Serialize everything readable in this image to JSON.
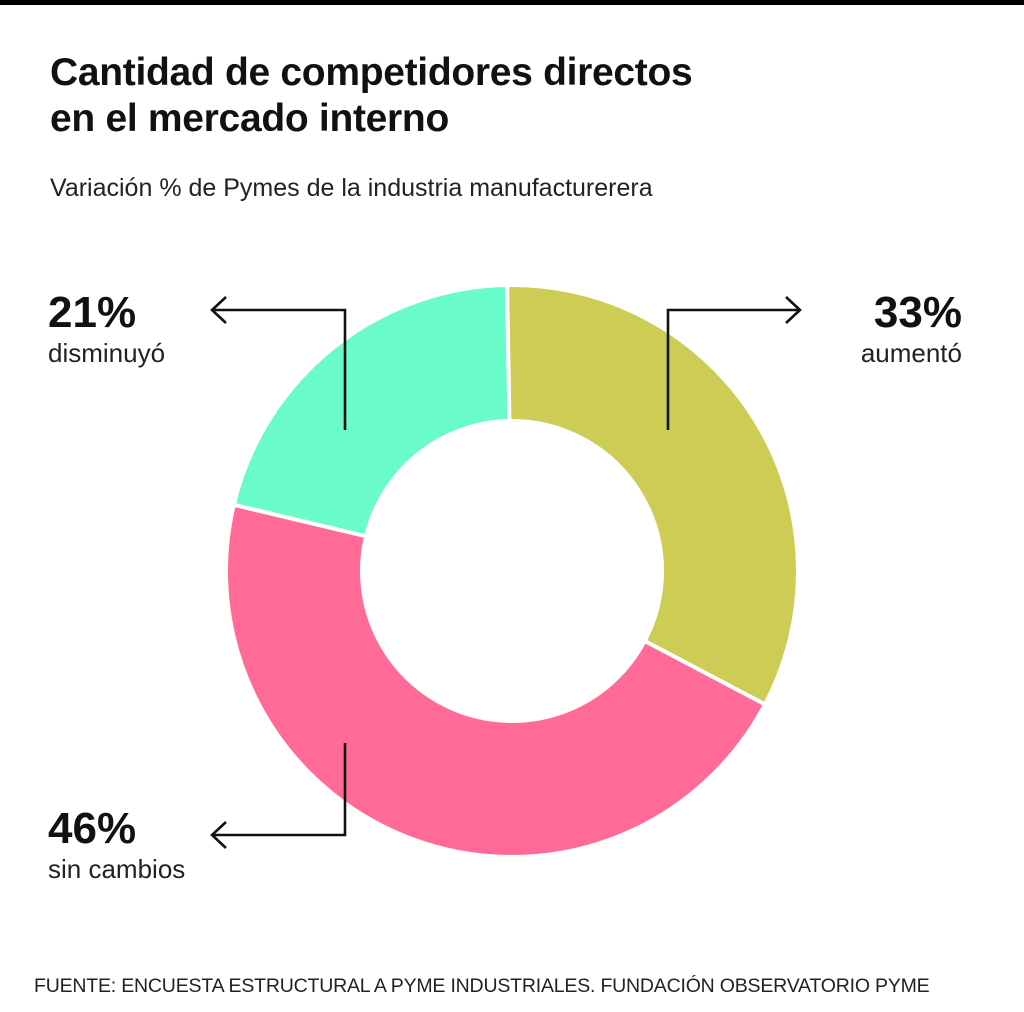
{
  "header": {
    "title_line1": "Cantidad de competidores directos",
    "title_line2": "en el mercado interno",
    "subtitle": "Variación % de Pymes de la industria manufacturerera"
  },
  "chart_data": {
    "type": "pie",
    "donut": true,
    "slices": [
      {
        "key": "aumento",
        "label": "aumentó",
        "value": 33,
        "value_label": "33%",
        "color": "#CDCD55"
      },
      {
        "key": "sin_cambios",
        "label": "sin cambios",
        "value": 46,
        "value_label": "46%",
        "color": "#FF6B96"
      },
      {
        "key": "disminuyo",
        "label": "disminuyó",
        "value": 21,
        "value_label": "21%",
        "color": "#69FCC8"
      }
    ]
  },
  "source": "FUENTE: ENCUESTA ESTRUCTURAL A PYME INDUSTRIALES. FUNDACIÓN OBSERVATORIO PYME"
}
